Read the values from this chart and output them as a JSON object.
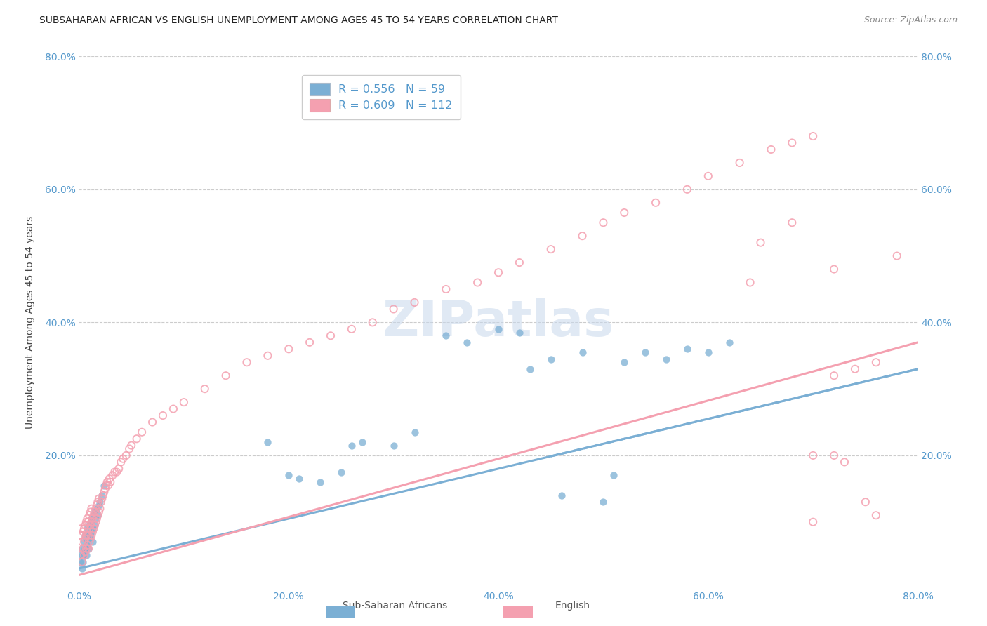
{
  "title": "SUBSAHARAN AFRICAN VS ENGLISH UNEMPLOYMENT AMONG AGES 45 TO 54 YEARS CORRELATION CHART",
  "source": "Source: ZipAtlas.com",
  "ylabel": "Unemployment Among Ages 45 to 54 years",
  "xlim": [
    0,
    0.8
  ],
  "ylim": [
    0,
    0.8
  ],
  "background_color": "#ffffff",
  "grid_color": "#cccccc",
  "blue_color": "#7bafd4",
  "pink_color": "#f4a0b0",
  "legend_label1": "Sub-Saharan Africans",
  "legend_label2": "English",
  "legend_R1": "R = 0.556",
  "legend_N1": "N = 59",
  "legend_R2": "R = 0.609",
  "legend_N2": "N = 112",
  "tick_color": "#5599cc",
  "title_color": "#222222",
  "source_color": "#888888",
  "blue_scatter_x": [
    0.001,
    0.002,
    0.003,
    0.003,
    0.004,
    0.004,
    0.005,
    0.005,
    0.006,
    0.006,
    0.007,
    0.007,
    0.008,
    0.008,
    0.009,
    0.009,
    0.01,
    0.01,
    0.011,
    0.011,
    0.012,
    0.012,
    0.013,
    0.013,
    0.014,
    0.015,
    0.015,
    0.016,
    0.017,
    0.018,
    0.019,
    0.02,
    0.022,
    0.024,
    0.18,
    0.2,
    0.21,
    0.23,
    0.25,
    0.26,
    0.27,
    0.3,
    0.32,
    0.35,
    0.37,
    0.4,
    0.42,
    0.43,
    0.45,
    0.46,
    0.48,
    0.5,
    0.51,
    0.52,
    0.54,
    0.56,
    0.58,
    0.6,
    0.62
  ],
  "blue_scatter_y": [
    0.04,
    0.05,
    0.03,
    0.06,
    0.05,
    0.04,
    0.055,
    0.07,
    0.06,
    0.08,
    0.065,
    0.05,
    0.07,
    0.09,
    0.06,
    0.08,
    0.075,
    0.095,
    0.08,
    0.1,
    0.085,
    0.105,
    0.09,
    0.07,
    0.11,
    0.095,
    0.115,
    0.105,
    0.12,
    0.11,
    0.125,
    0.13,
    0.14,
    0.155,
    0.22,
    0.17,
    0.165,
    0.16,
    0.175,
    0.215,
    0.22,
    0.215,
    0.235,
    0.38,
    0.37,
    0.39,
    0.385,
    0.33,
    0.345,
    0.14,
    0.355,
    0.13,
    0.17,
    0.34,
    0.355,
    0.345,
    0.36,
    0.355,
    0.37
  ],
  "pink_scatter_x": [
    0.001,
    0.001,
    0.002,
    0.002,
    0.003,
    0.003,
    0.004,
    0.004,
    0.005,
    0.005,
    0.005,
    0.006,
    0.006,
    0.006,
    0.007,
    0.007,
    0.007,
    0.008,
    0.008,
    0.008,
    0.009,
    0.009,
    0.009,
    0.01,
    0.01,
    0.01,
    0.011,
    0.011,
    0.011,
    0.012,
    0.012,
    0.012,
    0.013,
    0.013,
    0.014,
    0.014,
    0.015,
    0.015,
    0.016,
    0.016,
    0.017,
    0.017,
    0.018,
    0.018,
    0.019,
    0.019,
    0.02,
    0.021,
    0.022,
    0.023,
    0.024,
    0.025,
    0.026,
    0.027,
    0.028,
    0.029,
    0.03,
    0.032,
    0.034,
    0.036,
    0.038,
    0.04,
    0.042,
    0.045,
    0.048,
    0.05,
    0.055,
    0.06,
    0.07,
    0.08,
    0.09,
    0.1,
    0.12,
    0.14,
    0.16,
    0.18,
    0.2,
    0.22,
    0.24,
    0.26,
    0.28,
    0.3,
    0.32,
    0.35,
    0.38,
    0.4,
    0.42,
    0.45,
    0.48,
    0.5,
    0.52,
    0.55,
    0.58,
    0.6,
    0.63,
    0.66,
    0.68,
    0.7,
    0.72,
    0.74,
    0.76,
    0.78,
    0.72,
    0.68,
    0.65,
    0.64,
    0.7,
    0.73,
    0.75,
    0.76,
    0.7,
    0.72
  ],
  "pink_scatter_y": [
    0.05,
    0.08,
    0.05,
    0.09,
    0.04,
    0.07,
    0.06,
    0.085,
    0.05,
    0.07,
    0.09,
    0.055,
    0.075,
    0.095,
    0.06,
    0.08,
    0.1,
    0.065,
    0.085,
    0.105,
    0.06,
    0.08,
    0.1,
    0.07,
    0.09,
    0.11,
    0.075,
    0.095,
    0.115,
    0.08,
    0.1,
    0.12,
    0.085,
    0.105,
    0.09,
    0.11,
    0.095,
    0.115,
    0.1,
    0.12,
    0.105,
    0.125,
    0.11,
    0.13,
    0.115,
    0.135,
    0.12,
    0.13,
    0.135,
    0.14,
    0.145,
    0.15,
    0.155,
    0.16,
    0.155,
    0.165,
    0.16,
    0.17,
    0.175,
    0.175,
    0.18,
    0.19,
    0.195,
    0.2,
    0.21,
    0.215,
    0.225,
    0.235,
    0.25,
    0.26,
    0.27,
    0.28,
    0.3,
    0.32,
    0.34,
    0.35,
    0.36,
    0.37,
    0.38,
    0.39,
    0.4,
    0.42,
    0.43,
    0.45,
    0.46,
    0.475,
    0.49,
    0.51,
    0.53,
    0.55,
    0.565,
    0.58,
    0.6,
    0.62,
    0.64,
    0.66,
    0.67,
    0.2,
    0.32,
    0.33,
    0.34,
    0.5,
    0.48,
    0.55,
    0.52,
    0.46,
    0.1,
    0.19,
    0.13,
    0.11,
    0.68,
    0.2
  ],
  "blue_line_x": [
    0.0,
    0.8
  ],
  "blue_line_y_start": 0.03,
  "blue_line_y_end": 0.33,
  "pink_line_x": [
    0.0,
    0.8
  ],
  "pink_line_y_start": 0.02,
  "pink_line_y_end": 0.37
}
